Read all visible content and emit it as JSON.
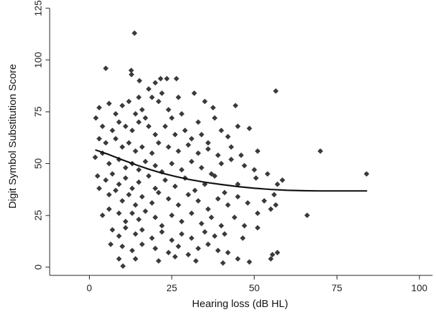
{
  "chart_data": {
    "type": "scatter",
    "title": "",
    "xlabel": "Hearing loss (dB HL)",
    "ylabel": "Digit Symbol Substitution Score",
    "xlim": [
      -12,
      104
    ],
    "ylim": [
      -4,
      125
    ],
    "x_ticks": [
      "0",
      "25",
      "50",
      "75",
      "100"
    ],
    "y_ticks": [
      "0",
      "25",
      "50",
      "75",
      "100",
      "125"
    ],
    "grid": false,
    "legend": "none",
    "marker": "diamond",
    "marker_color": "#3a3a3a",
    "line_color": "#111111",
    "series": [
      {
        "name": "",
        "points": [
          [
            13.7,
            113
          ],
          [
            5,
            96
          ],
          [
            12.7,
            95
          ],
          [
            12.8,
            93
          ],
          [
            21.6,
            91
          ],
          [
            23.5,
            91
          ],
          [
            26.4,
            91
          ],
          [
            15.2,
            90
          ],
          [
            20,
            89
          ],
          [
            18,
            86
          ],
          [
            31.8,
            84
          ],
          [
            56.5,
            85
          ],
          [
            10,
            78
          ],
          [
            12,
            80
          ],
          [
            15,
            82
          ],
          [
            19,
            82
          ],
          [
            21,
            80
          ],
          [
            22,
            84
          ],
          [
            27,
            82
          ],
          [
            35,
            80
          ],
          [
            44.3,
            78
          ],
          [
            37.5,
            77
          ],
          [
            3,
            77
          ],
          [
            6,
            79
          ],
          [
            8,
            74
          ],
          [
            14,
            74
          ],
          [
            16,
            76
          ],
          [
            17,
            72
          ],
          [
            24,
            76
          ],
          [
            25,
            72
          ],
          [
            28,
            74
          ],
          [
            33,
            70
          ],
          [
            38,
            72
          ],
          [
            40,
            66
          ],
          [
            2,
            72
          ],
          [
            4,
            68
          ],
          [
            7,
            66
          ],
          [
            9,
            70
          ],
          [
            11,
            68
          ],
          [
            13,
            66
          ],
          [
            15,
            70
          ],
          [
            18,
            68
          ],
          [
            20,
            64
          ],
          [
            23,
            68
          ],
          [
            26,
            64
          ],
          [
            29,
            66
          ],
          [
            31,
            62
          ],
          [
            34,
            64
          ],
          [
            36,
            60
          ],
          [
            42,
            63
          ],
          [
            45,
            68
          ],
          [
            48.5,
            67
          ],
          [
            3,
            62
          ],
          [
            5,
            60
          ],
          [
            8,
            62
          ],
          [
            10,
            58
          ],
          [
            12,
            60
          ],
          [
            14,
            56
          ],
          [
            16,
            58
          ],
          [
            19,
            55
          ],
          [
            21,
            60
          ],
          [
            24,
            58
          ],
          [
            27,
            56
          ],
          [
            30,
            59
          ],
          [
            33,
            55
          ],
          [
            36,
            57
          ],
          [
            39,
            54
          ],
          [
            43,
            58
          ],
          [
            46,
            54
          ],
          [
            70,
            56
          ],
          [
            1.8,
            53
          ],
          [
            4,
            55
          ],
          [
            6,
            50
          ],
          [
            9,
            52
          ],
          [
            11,
            48
          ],
          [
            13,
            50
          ],
          [
            15,
            47
          ],
          [
            17,
            51
          ],
          [
            20,
            49
          ],
          [
            22,
            46
          ],
          [
            25,
            50
          ],
          [
            28,
            47
          ],
          [
            31,
            51
          ],
          [
            34,
            48
          ],
          [
            37,
            45
          ],
          [
            40,
            50
          ],
          [
            43,
            52
          ],
          [
            47,
            49
          ],
          [
            51,
            56
          ],
          [
            54,
            45
          ],
          [
            2.5,
            44
          ],
          [
            5,
            42
          ],
          [
            7,
            45
          ],
          [
            9,
            40
          ],
          [
            11,
            43
          ],
          [
            13,
            38
          ],
          [
            15,
            41
          ],
          [
            18,
            44
          ],
          [
            20,
            38
          ],
          [
            23,
            42
          ],
          [
            26,
            39
          ],
          [
            29,
            43
          ],
          [
            32,
            37
          ],
          [
            35,
            40
          ],
          [
            38,
            44
          ],
          [
            41,
            36
          ],
          [
            45,
            40
          ],
          [
            50,
            47
          ],
          [
            50.5,
            43
          ],
          [
            57,
            40
          ],
          [
            58.5,
            42
          ],
          [
            84,
            45
          ],
          [
            3,
            38
          ],
          [
            6,
            35
          ],
          [
            8,
            37
          ],
          [
            10,
            32
          ],
          [
            12,
            35
          ],
          [
            14,
            30
          ],
          [
            16,
            34
          ],
          [
            19,
            31
          ],
          [
            21,
            36
          ],
          [
            24,
            33
          ],
          [
            27,
            30
          ],
          [
            30,
            35
          ],
          [
            33,
            32
          ],
          [
            36,
            28
          ],
          [
            39,
            33
          ],
          [
            42,
            30
          ],
          [
            45,
            34
          ],
          [
            48,
            31
          ],
          [
            53,
            32
          ],
          [
            56,
            35
          ],
          [
            4,
            25
          ],
          [
            6,
            28
          ],
          [
            9,
            26
          ],
          [
            11,
            22
          ],
          [
            13,
            26
          ],
          [
            15,
            23
          ],
          [
            17,
            27
          ],
          [
            20,
            24
          ],
          [
            22,
            20
          ],
          [
            25,
            25
          ],
          [
            28,
            22
          ],
          [
            31,
            26
          ],
          [
            34,
            21
          ],
          [
            37,
            24
          ],
          [
            40,
            20
          ],
          [
            44,
            24
          ],
          [
            47,
            20
          ],
          [
            51,
            26
          ],
          [
            55,
            28
          ],
          [
            56.5,
            30
          ],
          [
            66,
            25
          ],
          [
            7,
            18
          ],
          [
            9,
            15
          ],
          [
            11,
            19
          ],
          [
            14,
            16
          ],
          [
            16,
            18
          ],
          [
            19,
            14
          ],
          [
            22,
            17
          ],
          [
            25,
            13
          ],
          [
            28,
            16
          ],
          [
            31,
            14
          ],
          [
            35,
            17
          ],
          [
            38,
            15
          ],
          [
            41,
            16
          ],
          [
            51,
            19
          ],
          [
            46.5,
            14
          ],
          [
            6.5,
            11
          ],
          [
            10,
            10
          ],
          [
            13,
            8
          ],
          [
            16,
            11
          ],
          [
            20,
            9
          ],
          [
            24,
            7
          ],
          [
            27,
            10
          ],
          [
            30,
            6
          ],
          [
            33,
            9
          ],
          [
            36,
            11
          ],
          [
            39,
            8
          ],
          [
            42,
            7
          ],
          [
            55.5,
            6
          ],
          [
            57,
            7
          ],
          [
            9,
            4
          ],
          [
            10.2,
            0.5
          ],
          [
            14,
            4
          ],
          [
            21,
            3
          ],
          [
            26,
            5
          ],
          [
            32.3,
            3
          ],
          [
            40.5,
            2
          ],
          [
            45,
            4
          ],
          [
            48.5,
            2.5
          ],
          [
            55,
            4
          ]
        ]
      }
    ],
    "trend": {
      "name": "",
      "x": [
        2,
        6,
        10,
        14,
        18,
        22,
        26,
        30,
        35,
        40,
        45,
        50,
        55,
        60,
        65,
        70,
        75,
        80,
        84
      ],
      "y": [
        56.5,
        54.3,
        51.8,
        49.5,
        47.3,
        45.4,
        43.8,
        42.4,
        41.0,
        39.9,
        38.9,
        38.1,
        37.5,
        37.1,
        36.9,
        36.8,
        36.8,
        36.8,
        36.8
      ]
    }
  }
}
